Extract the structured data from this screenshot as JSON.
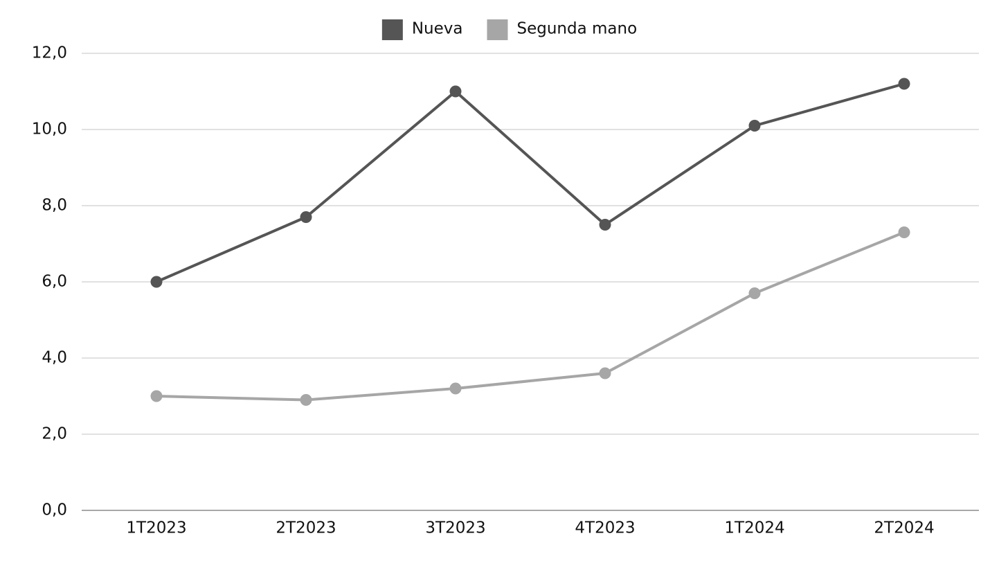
{
  "chart_data": {
    "type": "line",
    "categories": [
      "1T2023",
      "2T2023",
      "3T2023",
      "4T2023",
      "1T2024",
      "2T2024"
    ],
    "series": [
      {
        "name": "Nueva",
        "color": "#555555",
        "values": [
          6.0,
          7.7,
          11.0,
          7.5,
          10.1,
          11.2
        ]
      },
      {
        "name": "Segunda mano",
        "color": "#a6a6a6",
        "values": [
          3.0,
          2.9,
          3.2,
          3.6,
          5.7,
          7.3
        ]
      }
    ],
    "ylim": [
      0,
      12
    ],
    "yticks": [
      {
        "value": 0,
        "label": "0,0"
      },
      {
        "value": 2,
        "label": "2,0"
      },
      {
        "value": 4,
        "label": "4,0"
      },
      {
        "value": 6,
        "label": "6,0"
      },
      {
        "value": 8,
        "label": "8,0"
      },
      {
        "value": 10,
        "label": "10,0"
      },
      {
        "value": 12,
        "label": "12,0"
      }
    ],
    "grid": true,
    "legend": "top"
  }
}
